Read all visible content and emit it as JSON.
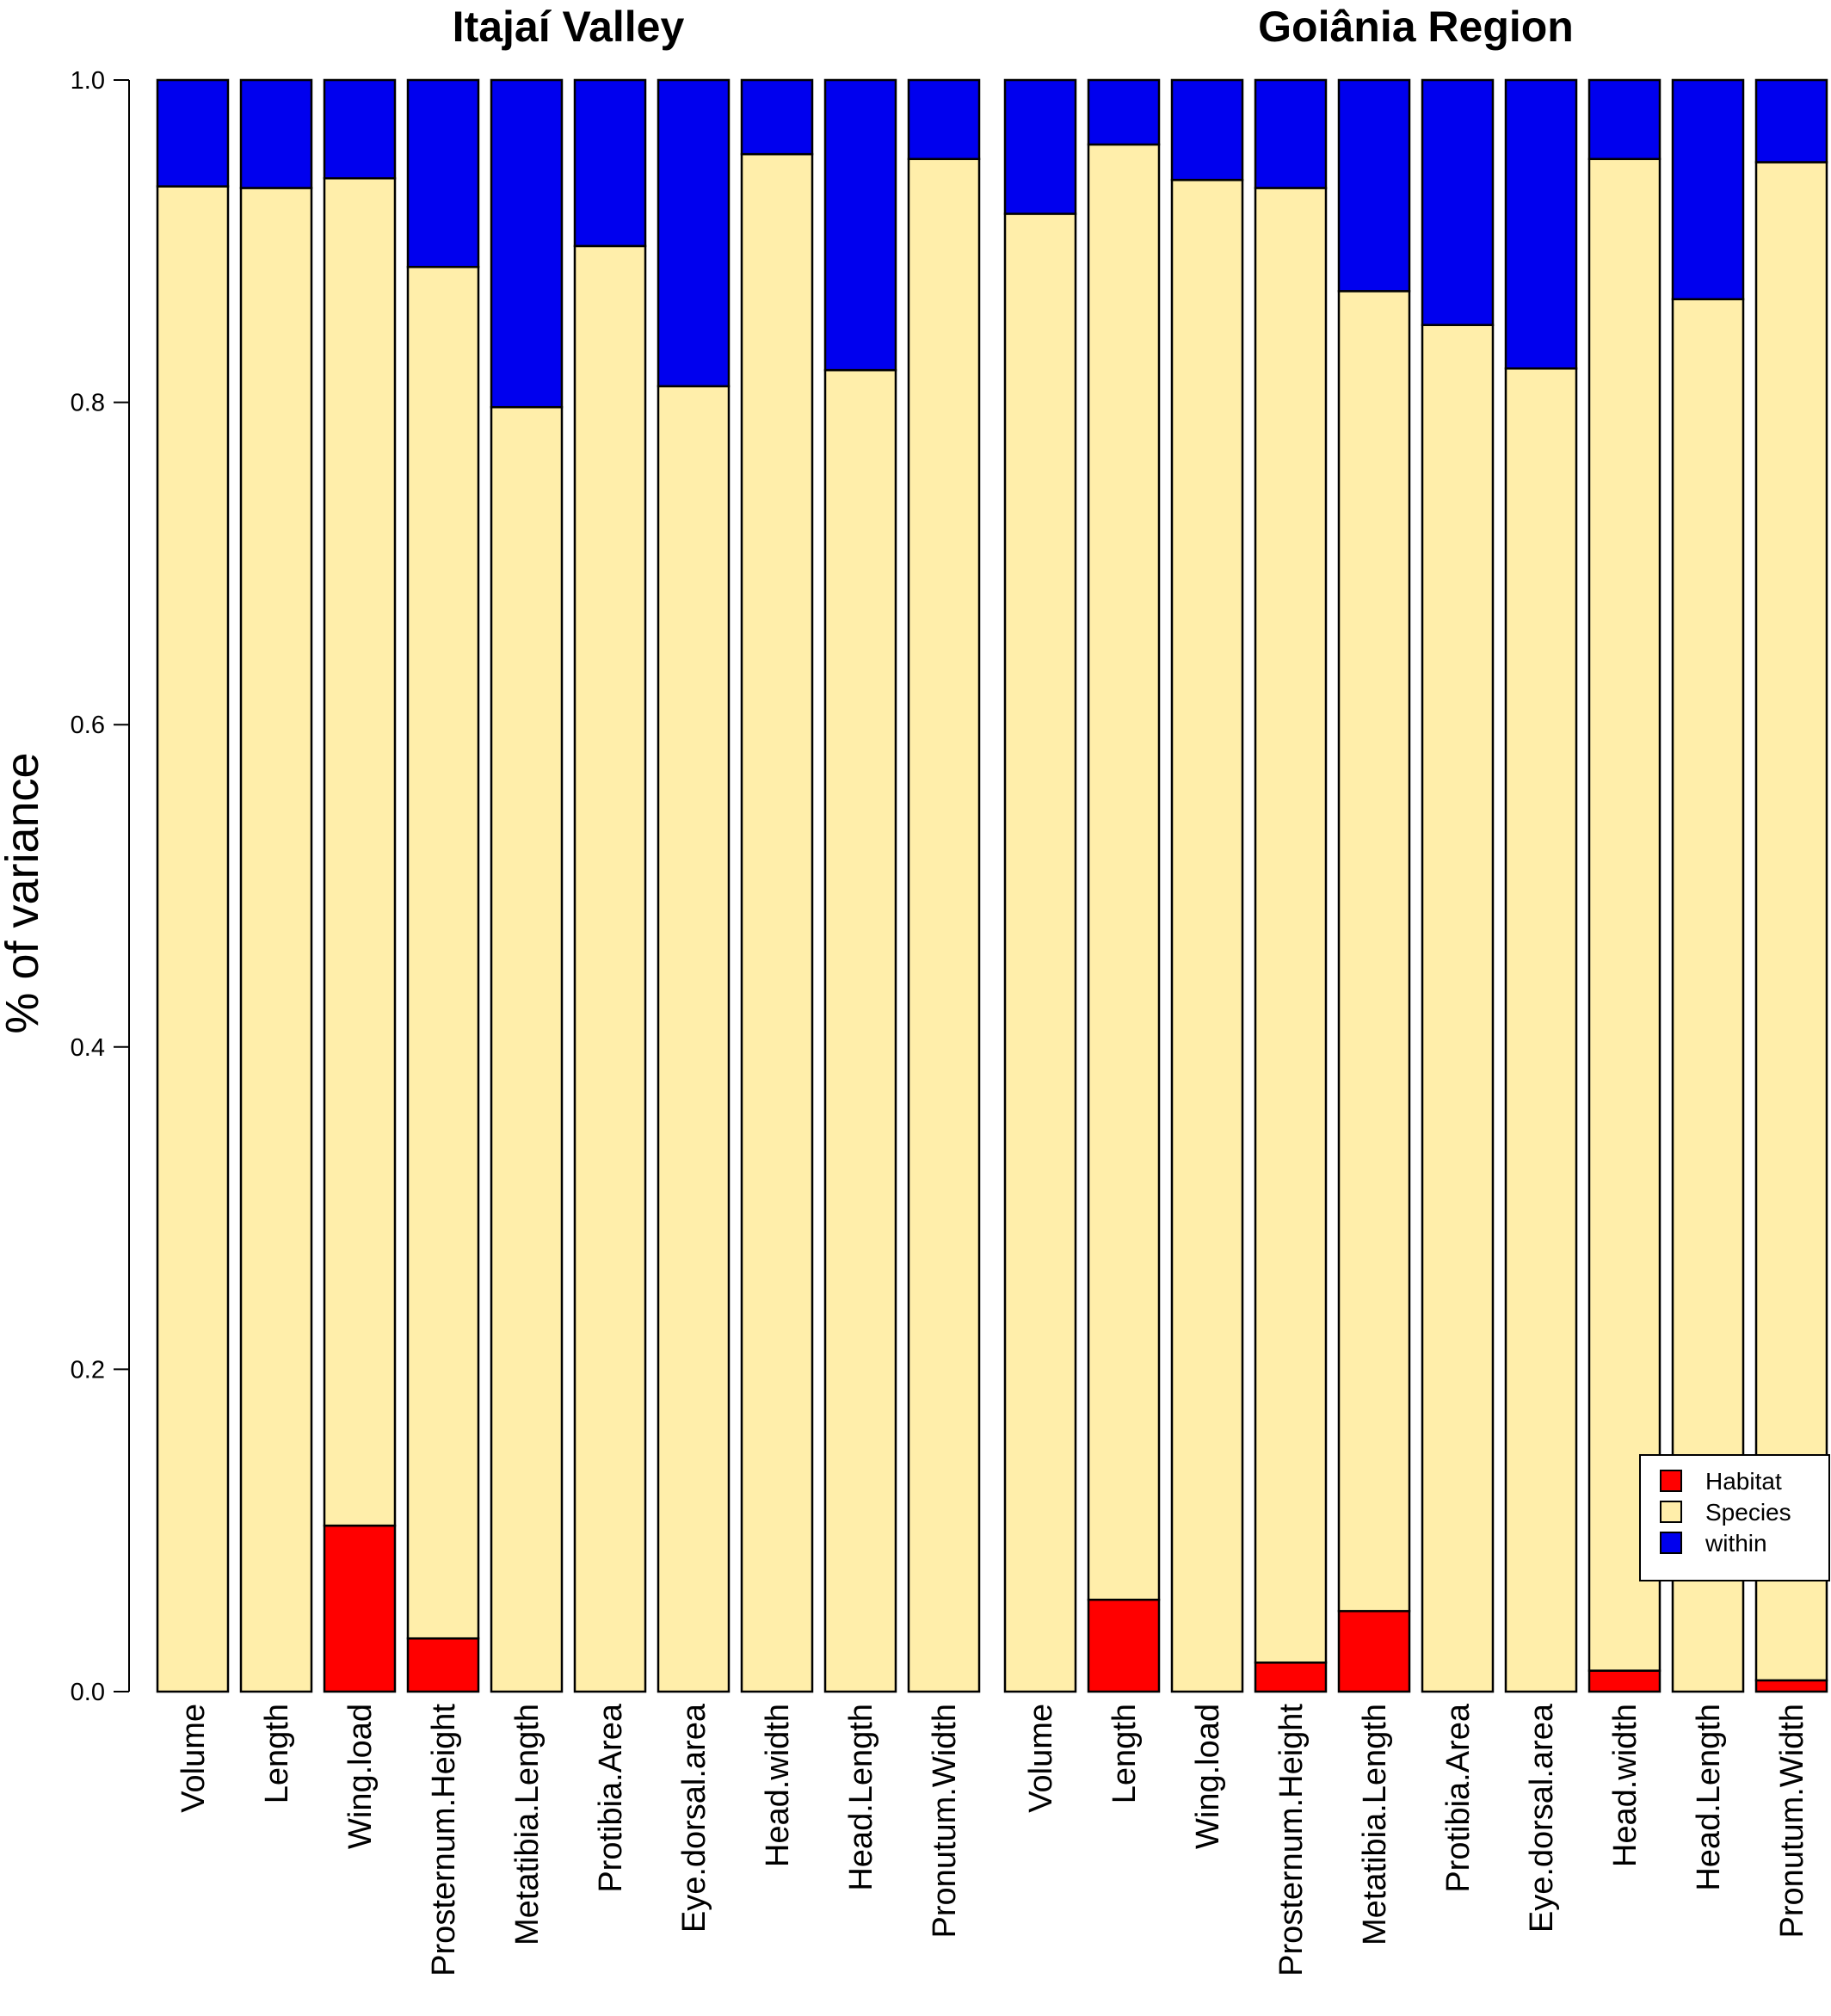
{
  "chart_data": {
    "type": "bar",
    "stacked": true,
    "ylabel": "% of variance",
    "ylim": [
      0,
      1
    ],
    "yticks": [
      "0.0",
      "0.2",
      "0.4",
      "0.6",
      "0.8",
      "1.0"
    ],
    "legend": {
      "position": "bottom-right",
      "entries": [
        {
          "name": "Habitat",
          "color": "#ff0000"
        },
        {
          "name": "Species",
          "color": "#ffeeaa"
        },
        {
          "name": "within",
          "color": "#0000ee"
        }
      ]
    },
    "panels": [
      {
        "title": "Itajaí Valley",
        "categories": [
          "Volume",
          "Length",
          "Wing.load",
          "Prosternum.Height",
          "Metatibia.Length",
          "Protibia.Area",
          "Eye.dorsal.area",
          "Head.width",
          "Head.Length",
          "Pronutum.Width"
        ],
        "series": [
          {
            "name": "Habitat",
            "values": [
              0.0,
              0.0,
              0.103,
              0.033,
              0.0,
              0.0,
              0.0,
              0.0,
              0.0,
              0.0
            ]
          },
          {
            "name": "Species",
            "values": [
              0.934,
              0.933,
              0.836,
              0.851,
              0.797,
              0.897,
              0.81,
              0.954,
              0.82,
              0.951
            ]
          },
          {
            "name": "within",
            "values": [
              0.066,
              0.067,
              0.061,
              0.116,
              0.203,
              0.103,
              0.19,
              0.046,
              0.18,
              0.049
            ]
          }
        ]
      },
      {
        "title": "Goiânia Region",
        "categories": [
          "Volume",
          "Length",
          "Wing.load",
          "Prosternum.Height",
          "Metatibia.Length",
          "Protibia.Area",
          "Eye.dorsal.area",
          "Head.width",
          "Head.Length",
          "Pronutum.Width"
        ],
        "series": [
          {
            "name": "Habitat",
            "values": [
              0.0,
              0.057,
              0.0,
              0.018,
              0.05,
              0.0,
              0.0,
              0.013,
              0.0,
              0.007
            ]
          },
          {
            "name": "Species",
            "values": [
              0.917,
              0.903,
              0.938,
              0.915,
              0.819,
              0.848,
              0.821,
              0.938,
              0.864,
              0.942
            ]
          },
          {
            "name": "within",
            "values": [
              0.083,
              0.04,
              0.062,
              0.067,
              0.131,
              0.152,
              0.179,
              0.049,
              0.136,
              0.051
            ]
          }
        ]
      }
    ]
  }
}
